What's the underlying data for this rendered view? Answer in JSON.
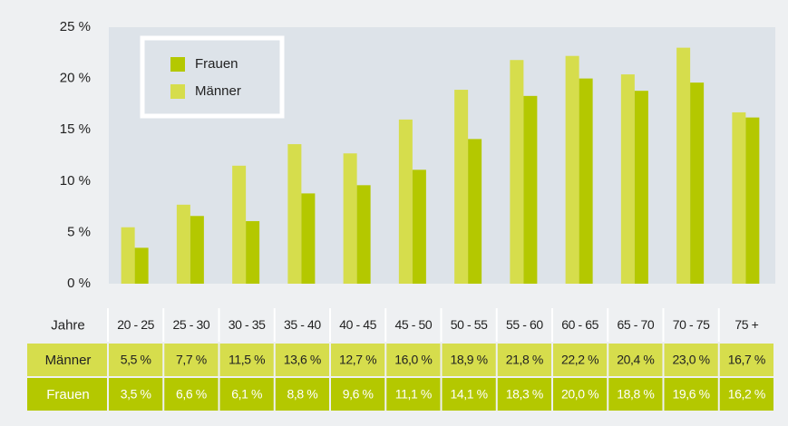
{
  "chart_data": {
    "type": "bar",
    "categories": [
      "20 - 25",
      "25 - 30",
      "30 - 35",
      "35 - 40",
      "40 - 45",
      "45 - 50",
      "50 - 55",
      "55 - 60",
      "60 - 65",
      "65 - 70",
      "70 - 75",
      "75 +"
    ],
    "series": [
      {
        "name": "Frauen",
        "color": "#b4c800",
        "values": [
          3.5,
          6.6,
          6.1,
          8.8,
          9.6,
          11.1,
          14.1,
          18.3,
          20.0,
          18.8,
          19.6,
          16.2
        ],
        "value_labels": [
          "3,5 %",
          "6,6 %",
          "6,1 %",
          "8,8 %",
          "9,6 %",
          "11,1 %",
          "14,1 %",
          "18,3 %",
          "20,0 %",
          "18,8 %",
          "19,6 %",
          "16,2 %"
        ]
      },
      {
        "name": "Männer",
        "color": "#d6dd4c",
        "values": [
          5.5,
          7.7,
          11.5,
          13.6,
          12.7,
          16.0,
          18.9,
          21.8,
          22.2,
          20.4,
          23.0,
          16.7
        ],
        "value_labels": [
          "5,5 %",
          "7,7 %",
          "11,5 %",
          "13,6 %",
          "12,7 %",
          "16,0 %",
          "18,9 %",
          "21,8 %",
          "22,2 %",
          "20,4 %",
          "23,0 %",
          "16,7 %"
        ]
      }
    ],
    "ylim": [
      0,
      25
    ],
    "yticks": [
      {
        "value": 0,
        "label": "0 %"
      },
      {
        "value": 5,
        "label": "5 %"
      },
      {
        "value": 10,
        "label": "10 %"
      },
      {
        "value": 15,
        "label": "15 %"
      },
      {
        "value": 20,
        "label": "20 %"
      },
      {
        "value": 25,
        "label": "25 %"
      }
    ],
    "grid": false,
    "legend": "upper left",
    "table_header": "Jahre"
  }
}
